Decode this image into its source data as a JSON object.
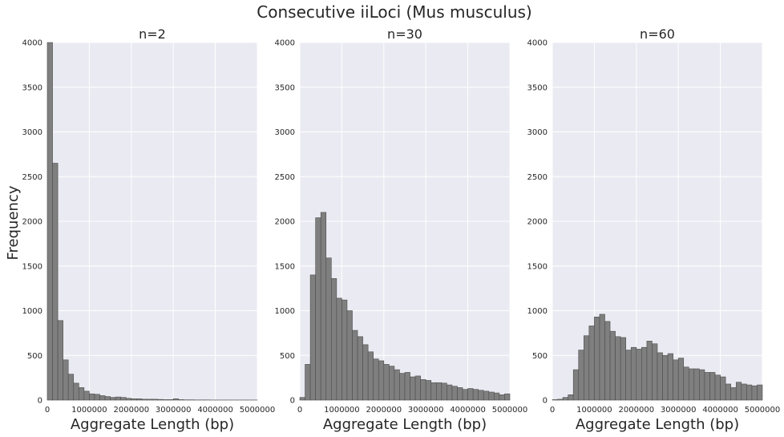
{
  "figure": {
    "title": "Consecutive iiLoci (Mus musculus)",
    "shared_ylabel": "Frequency"
  },
  "chart_data": [
    {
      "type": "bar",
      "title": "n=2",
      "xlabel": "Aggregate Length (bp)",
      "ylabel": "Frequency",
      "xlim": [
        0,
        5000000
      ],
      "ylim": [
        0,
        4000
      ],
      "xticks": [
        "0",
        "1000000",
        "2000000",
        "3000000",
        "4000000",
        "5000000"
      ],
      "yticks": [
        "0",
        "500",
        "1000",
        "1500",
        "2000",
        "2500",
        "3000",
        "3500",
        "4000"
      ],
      "grid": true,
      "bin_width": 125000,
      "values": [
        4000,
        2650,
        890,
        450,
        290,
        190,
        140,
        100,
        70,
        65,
        50,
        40,
        30,
        35,
        30,
        20,
        15,
        15,
        10,
        10,
        10,
        8,
        5,
        5,
        15,
        5,
        3,
        3,
        2,
        2,
        2,
        1,
        1,
        1,
        1,
        1,
        1,
        1,
        1,
        1
      ]
    },
    {
      "type": "bar",
      "title": "n=30",
      "xlabel": "Aggregate Length (bp)",
      "ylabel": "",
      "xlim": [
        0,
        5000000
      ],
      "ylim": [
        0,
        4000
      ],
      "xticks": [
        "0",
        "1000000",
        "2000000",
        "3000000",
        "4000000",
        "5000000"
      ],
      "yticks": [
        "0",
        "500",
        "1000",
        "1500",
        "2000",
        "2500",
        "3000",
        "3500",
        "4000"
      ],
      "grid": true,
      "bin_width": 125000,
      "values": [
        30,
        400,
        1400,
        2040,
        2100,
        1590,
        1360,
        1140,
        1120,
        1000,
        780,
        710,
        620,
        540,
        460,
        440,
        400,
        380,
        340,
        300,
        310,
        260,
        270,
        230,
        220,
        195,
        195,
        190,
        170,
        155,
        140,
        120,
        130,
        120,
        110,
        100,
        90,
        80,
        60,
        70
      ]
    },
    {
      "type": "bar",
      "title": "n=60",
      "xlabel": "Aggregate Length (bp)",
      "ylabel": "",
      "xlim": [
        0,
        5000000
      ],
      "ylim": [
        0,
        4000
      ],
      "xticks": [
        "0",
        "1000000",
        "2000000",
        "3000000",
        "4000000",
        "5000000"
      ],
      "yticks": [
        "0",
        "500",
        "1000",
        "1500",
        "2000",
        "2500",
        "3000",
        "3500",
        "4000"
      ],
      "grid": true,
      "bin_width": 125000,
      "values": [
        5,
        10,
        30,
        60,
        340,
        560,
        720,
        830,
        930,
        960,
        880,
        770,
        710,
        700,
        560,
        590,
        570,
        590,
        660,
        630,
        530,
        500,
        520,
        450,
        470,
        370,
        350,
        350,
        340,
        310,
        310,
        280,
        260,
        180,
        140,
        200,
        180,
        170,
        160,
        170
      ]
    }
  ]
}
